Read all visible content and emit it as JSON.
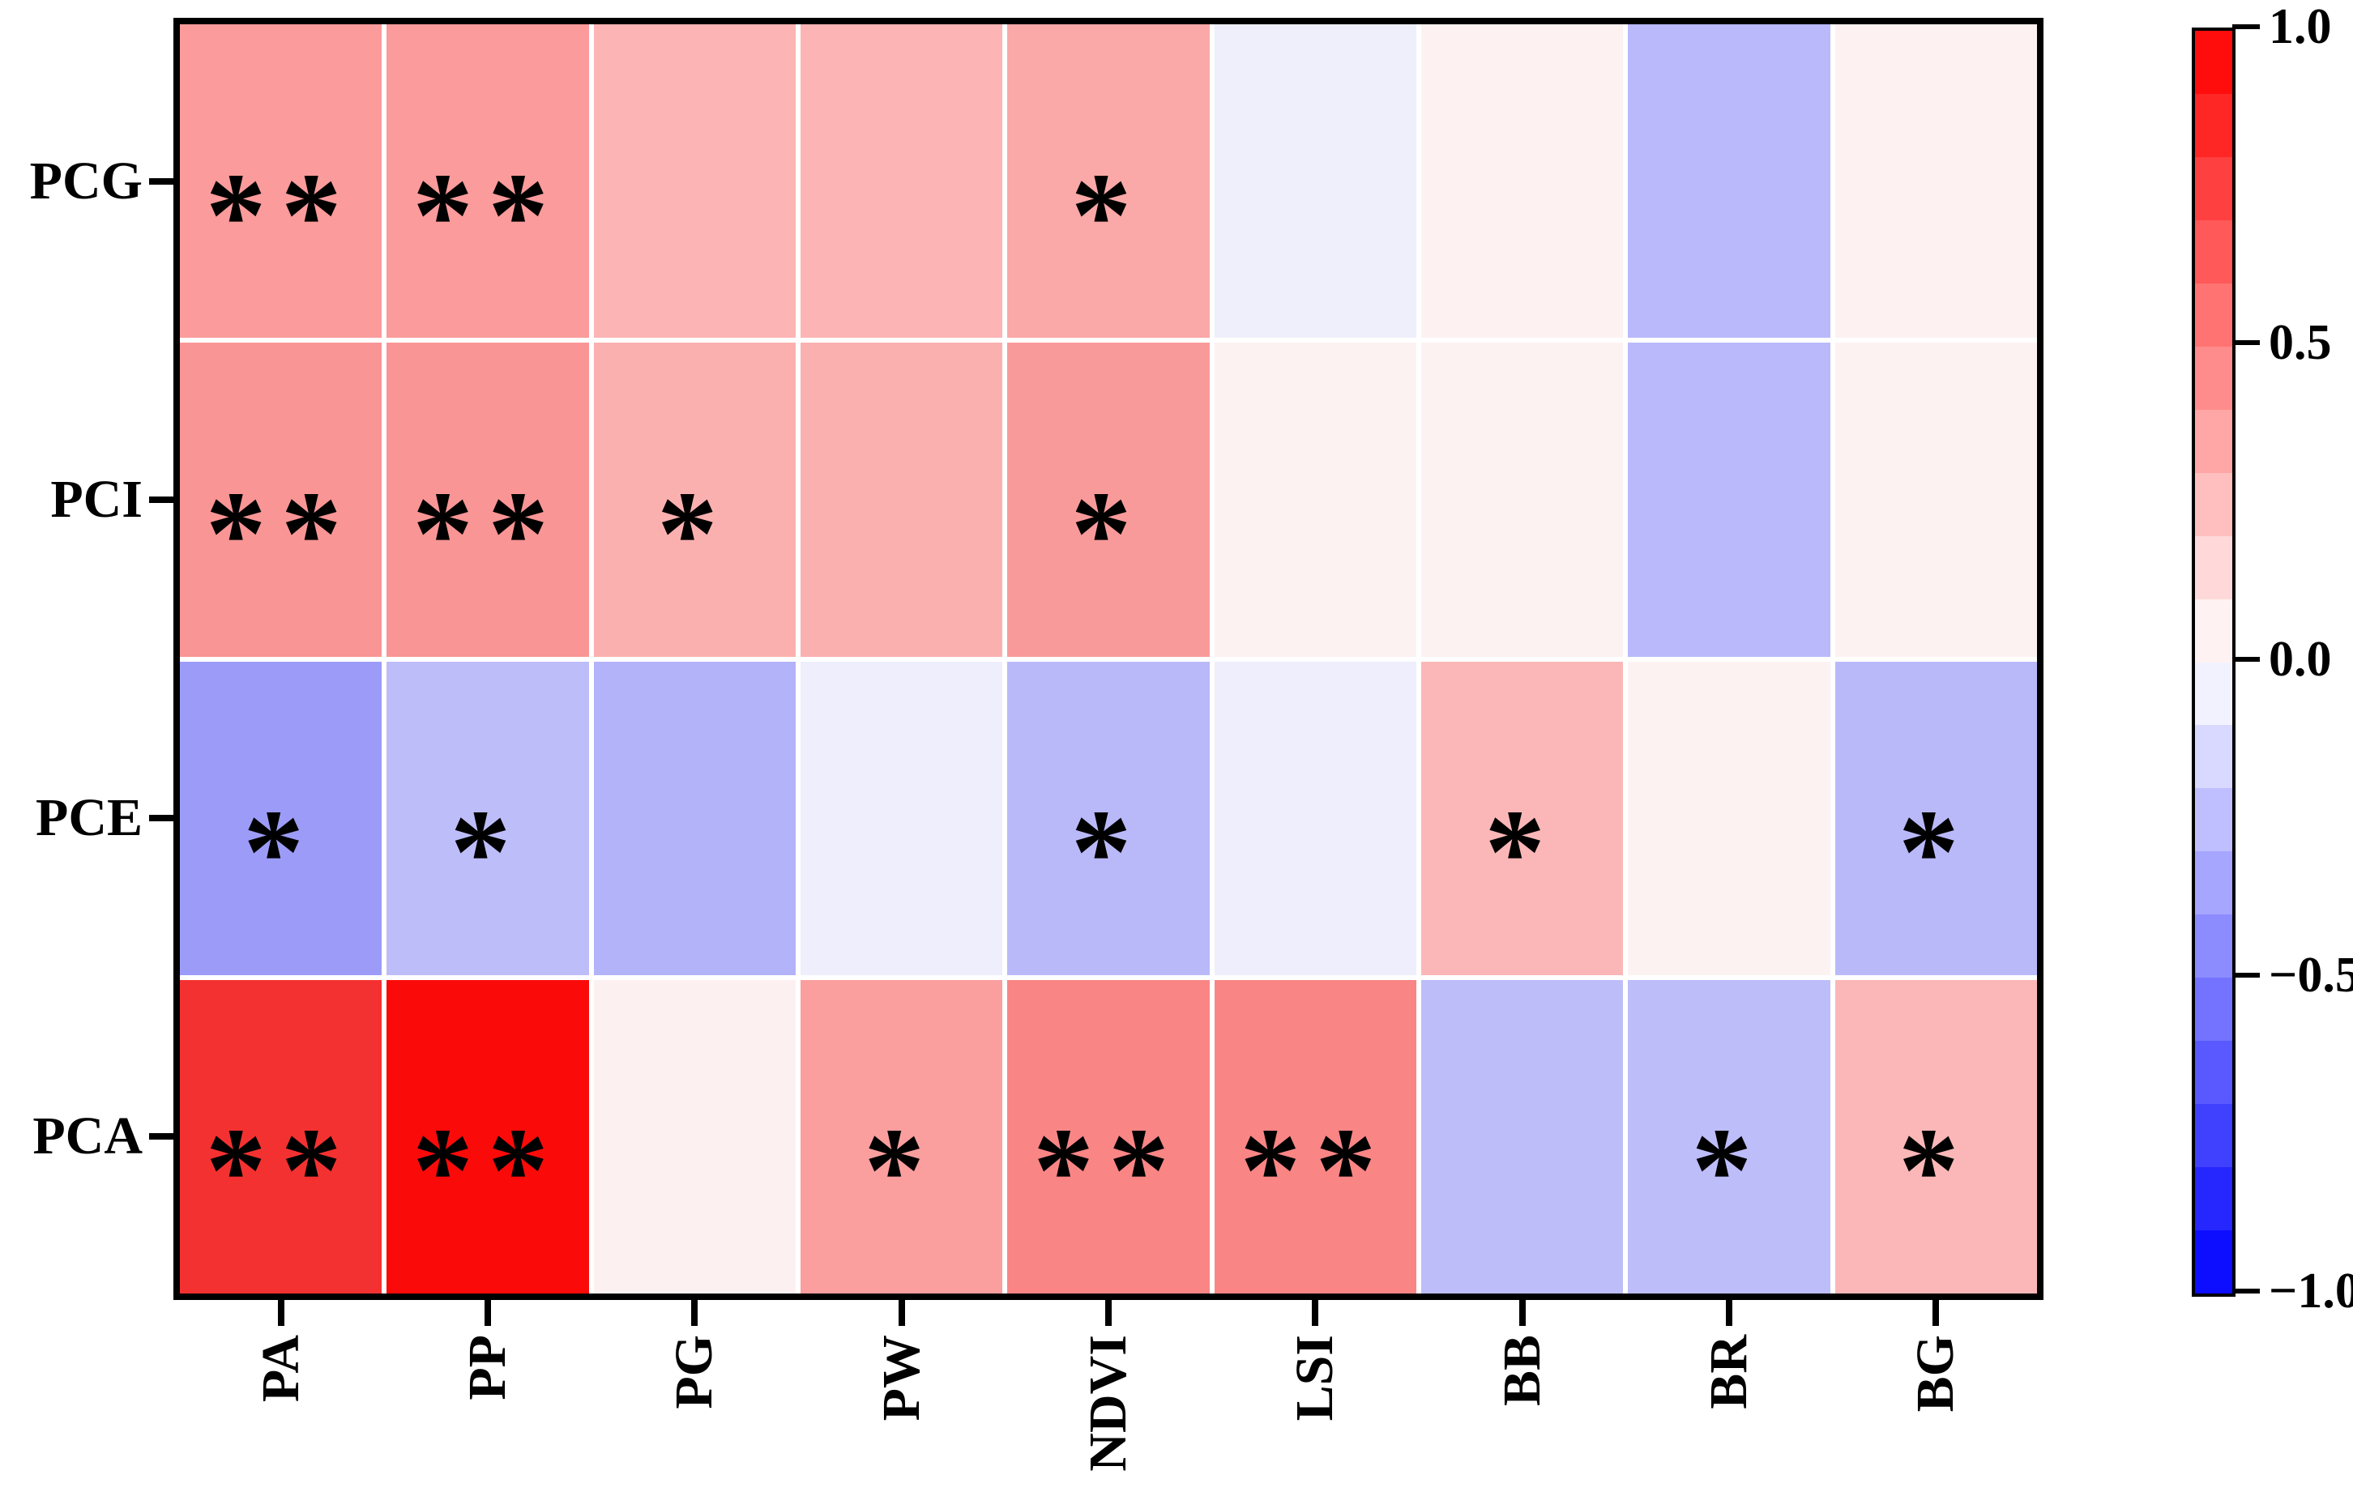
{
  "figure": {
    "background": "#ffffff",
    "accent_black": "#000000",
    "gridline_color": "#ffffff"
  },
  "chart_data": {
    "type": "heatmap",
    "title": "",
    "xlabel": "",
    "ylabel": "",
    "x_categories": [
      "PA",
      "PP",
      "PG",
      "PW",
      "NDVI",
      "LSI",
      "BB",
      "BR",
      "BG"
    ],
    "y_categories": [
      "PCG",
      "PCI",
      "PCE",
      "PCA"
    ],
    "value_range": [
      -1.0,
      1.0
    ],
    "colormap": "blue-white-red, 20 discrete bins",
    "legend_position": "right-colorbar",
    "grid": "white cell separators",
    "series": [
      {
        "name": "PCG",
        "values": [
          0.4,
          0.4,
          0.3,
          0.3,
          0.35,
          -0.05,
          0.05,
          -0.25,
          0.05
        ],
        "significance": [
          "**",
          "**",
          "",
          "",
          "*",
          "",
          "",
          "",
          ""
        ],
        "cell_colors": [
          "#fb9b9b",
          "#fb9b9b",
          "#fcb4b4",
          "#fcb4b4",
          "#fba8a8",
          "#efeffb",
          "#fdf1f1",
          "#b9b9fb",
          "#fdf1f1"
        ]
      },
      {
        "name": "PCI",
        "values": [
          0.45,
          0.45,
          0.3,
          0.3,
          0.45,
          0.05,
          0.05,
          -0.25,
          0.05
        ],
        "significance": [
          "**",
          "**",
          "*",
          "",
          "*",
          "",
          "",
          "",
          ""
        ],
        "cell_colors": [
          "#f99595",
          "#f99595",
          "#fbb0b0",
          "#fbb0b0",
          "#f99a9a",
          "#fdf2f2",
          "#fdf2f2",
          "#b9b9fb",
          "#fdf2f2"
        ]
      },
      {
        "name": "PCE",
        "values": [
          -0.4,
          -0.25,
          -0.3,
          -0.05,
          -0.3,
          -0.05,
          0.3,
          0.05,
          -0.3
        ],
        "significance": [
          "*",
          "*",
          "",
          "",
          "*",
          "",
          "*",
          "",
          "*"
        ],
        "cell_colors": [
          "#9c9cf8",
          "#bdbdfa",
          "#b3b3f9",
          "#eeeefc",
          "#b9b9fa",
          "#eeeefc",
          "#fbb7b7",
          "#fdf2f2",
          "#b9b9fa"
        ]
      },
      {
        "name": "PCA",
        "values": [
          0.85,
          0.95,
          0.05,
          0.4,
          0.5,
          0.5,
          -0.25,
          -0.3,
          0.3
        ],
        "significance": [
          "**",
          "**",
          "",
          "*",
          "**",
          "**",
          "",
          "*",
          "*"
        ],
        "cell_colors": [
          "#f43131",
          "#fb0a0a",
          "#fdf0f0",
          "#fa9e9e",
          "#f98585",
          "#f98585",
          "#bdbdfa",
          "#bdbdfa",
          "#fbb7b7"
        ]
      }
    ]
  },
  "colorbar": {
    "tick_labels": [
      "1.0",
      "0.5",
      "0.0",
      "−0.5",
      "−1.0"
    ],
    "segments_top_to_bottom": [
      "#ff0d0d",
      "#ff2626",
      "#ff4040",
      "#ff5959",
      "#ff7373",
      "#ff8c8c",
      "#ffa6a6",
      "#ffbfbf",
      "#ffd9d9",
      "#fff2f2",
      "#f2f2ff",
      "#d9d9ff",
      "#bfbfff",
      "#a6a6ff",
      "#8c8cff",
      "#7373ff",
      "#5959ff",
      "#4040ff",
      "#2626ff",
      "#0d0dff"
    ]
  }
}
